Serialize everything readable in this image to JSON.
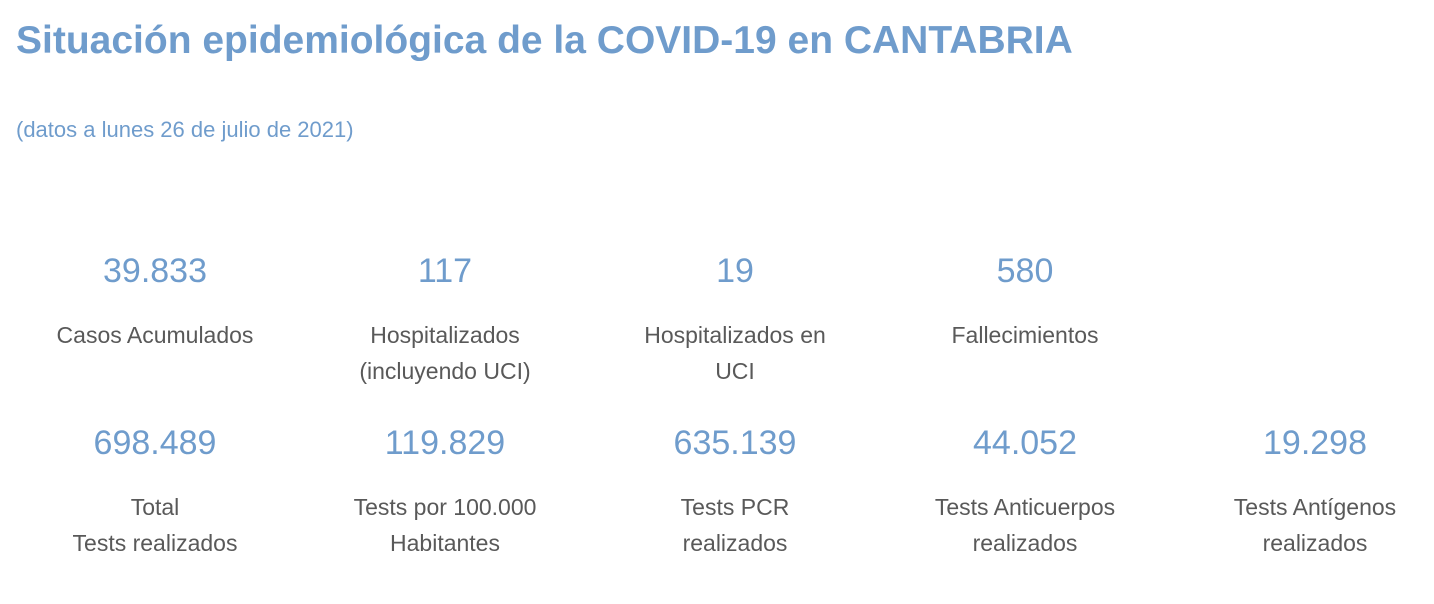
{
  "header": {
    "title": "Situación epidemiológica de la COVID-19 en CANTABRIA",
    "subtitle": "(datos a lunes 26 de julio de 2021)"
  },
  "stats": {
    "row1": [
      {
        "value": "39.833",
        "label": "Casos Acumulados"
      },
      {
        "value": "117",
        "label": "Hospitalizados\n(incluyendo UCI)"
      },
      {
        "value": "19",
        "label": "Hospitalizados en\nUCI"
      },
      {
        "value": "580",
        "label": "Fallecimientos"
      }
    ],
    "row2": [
      {
        "value": "698.489",
        "label": "Total\nTests realizados"
      },
      {
        "value": "119.829",
        "label": "Tests por 100.000\nHabitantes"
      },
      {
        "value": "635.139",
        "label": "Tests PCR\nrealizados"
      },
      {
        "value": "44.052",
        "label": "Tests Anticuerpos\nrealizados"
      },
      {
        "value": "19.298",
        "label": "Tests Antígenos\nrealizados"
      }
    ]
  },
  "colors": {
    "accent": "#6f9ccc",
    "label_text": "#595959"
  }
}
